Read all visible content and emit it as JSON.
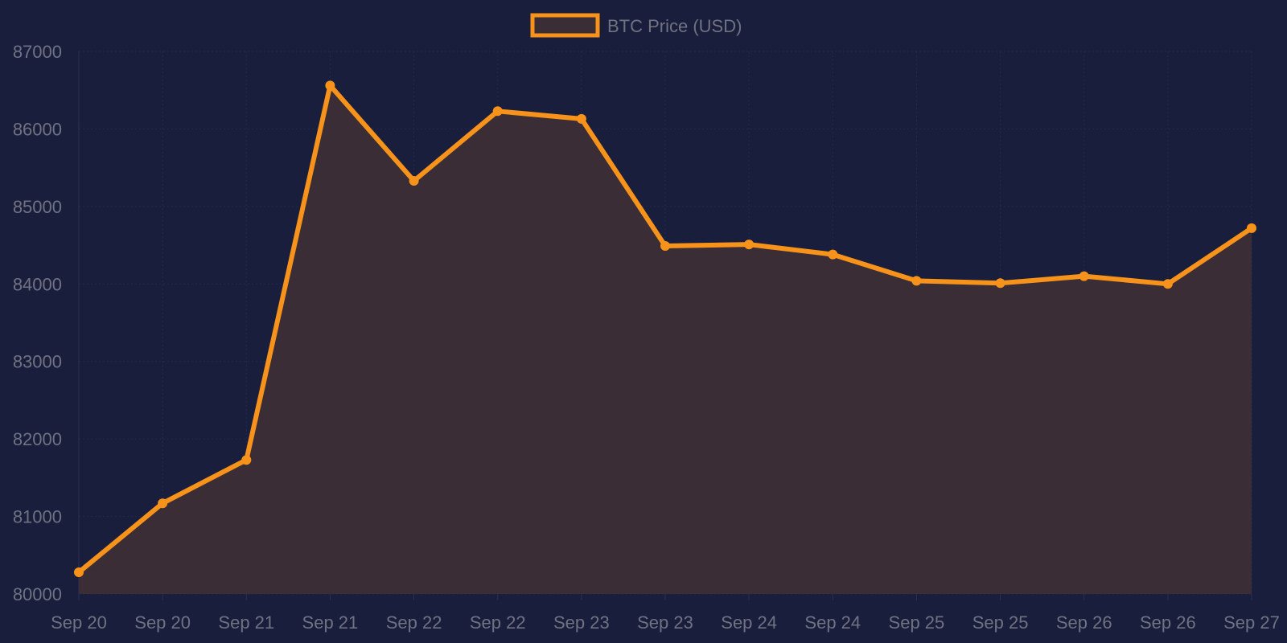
{
  "colors": {
    "background": "#1a1e3d",
    "line": "#f7931a",
    "fill": "#3a2d35",
    "text": "#6f7280",
    "grid": "#252a4a"
  },
  "legend": {
    "label": "BTC Price (USD)",
    "placement": "top-center"
  },
  "chart_data": {
    "type": "area",
    "title": "",
    "xlabel": "",
    "ylabel": "",
    "x": [
      "Sep 20",
      "Sep 20",
      "Sep 21",
      "Sep 21",
      "Sep 22",
      "Sep 22",
      "Sep 23",
      "Sep 23",
      "Sep 24",
      "Sep 24",
      "Sep 25",
      "Sep 25",
      "Sep 26",
      "Sep 26",
      "Sep 27"
    ],
    "series": [
      {
        "name": "BTC Price (USD)",
        "values": [
          80280,
          81170,
          81730,
          86560,
          85330,
          86230,
          86130,
          84490,
          84510,
          84380,
          84040,
          84010,
          84100,
          84000,
          84720
        ]
      }
    ],
    "ylim": [
      80000,
      87000
    ],
    "yticks": [
      80000,
      81000,
      82000,
      83000,
      84000,
      85000,
      86000,
      87000
    ],
    "grid": true
  }
}
